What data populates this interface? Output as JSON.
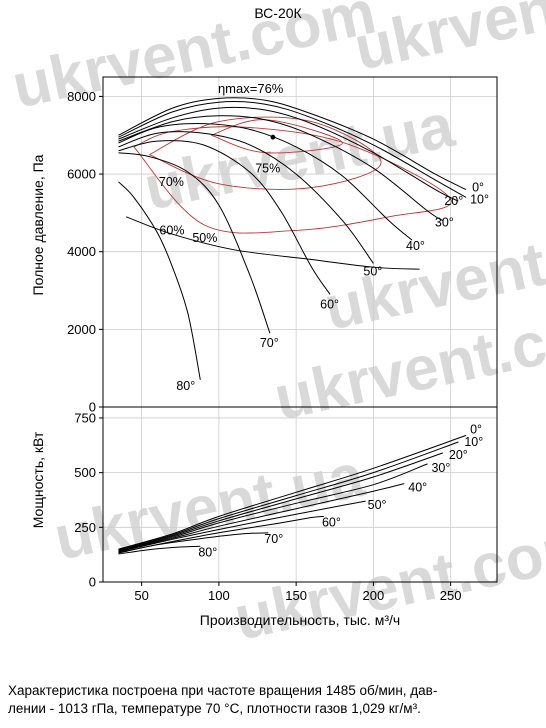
{
  "watermark": {
    "text": "ukrvent.com",
    "text_alt": "ukrvent.ua"
  },
  "footnote": {
    "line1": "Характеристика построена при частоте вращения 1485 об/мин, дав-",
    "line2": "лении - 1013 гПа, температуре 70 °С, плотности газов 1,029 кг/м³."
  },
  "colors": {
    "curves": "#000000",
    "efficiency_ellipses": "#b23a3a",
    "grid": "#cccccc"
  },
  "chart_data": [
    {
      "type": "line",
      "title": "ВС-20К",
      "xlabel": "",
      "ylabel": "Полное давление, Па",
      "xlim": [
        25,
        280
      ],
      "ylim": [
        0,
        8500
      ],
      "xticks": [],
      "yticks": [
        0,
        2000,
        4000,
        6000,
        8000
      ],
      "ytick_labels": [
        "0",
        "2000",
        "4000",
        "6000",
        "8000"
      ],
      "grid": true,
      "eta_max": {
        "label": "ηmax=76%",
        "x": 135,
        "y": 6950
      },
      "series": [
        {
          "name": "0°",
          "x": [
            35,
            70,
            100,
            130,
            160,
            200,
            240,
            260
          ],
          "y": [
            7000,
            7700,
            7950,
            7900,
            7550,
            6900,
            6000,
            5600
          ]
        },
        {
          "name": "10°",
          "x": [
            35,
            70,
            100,
            130,
            160,
            200,
            240,
            260
          ],
          "y": [
            6950,
            7600,
            7850,
            7800,
            7450,
            6750,
            5850,
            5400
          ]
        },
        {
          "name": "20°",
          "x": [
            35,
            70,
            100,
            130,
            160,
            200,
            240,
            255
          ],
          "y": [
            6900,
            7450,
            7700,
            7650,
            7300,
            6550,
            5600,
            5300
          ]
        },
        {
          "name": "30°",
          "x": [
            35,
            70,
            100,
            130,
            160,
            200,
            235,
            245
          ],
          "y": [
            6850,
            7350,
            7500,
            7400,
            7000,
            6150,
            5050,
            4800
          ]
        },
        {
          "name": "40°",
          "x": [
            35,
            60,
            90,
            120,
            150,
            180,
            210,
            225
          ],
          "y": [
            6800,
            7200,
            7300,
            7150,
            6700,
            5950,
            4800,
            4300
          ]
        },
        {
          "name": "50°",
          "x": [
            35,
            60,
            90,
            120,
            150,
            180,
            200
          ],
          "y": [
            6700,
            7050,
            7050,
            6750,
            6000,
            4800,
            3700
          ]
        },
        {
          "name": "60°",
          "x": [
            35,
            60,
            90,
            120,
            140,
            160,
            172
          ],
          "y": [
            6600,
            6850,
            6750,
            6050,
            5050,
            3600,
            2900
          ]
        },
        {
          "name": "70°",
          "x": [
            35,
            55,
            80,
            100,
            120,
            133
          ],
          "y": [
            6550,
            6450,
            6050,
            5200,
            3400,
            1900
          ]
        },
        {
          "name": "80°",
          "x": [
            35,
            45,
            60,
            70,
            80,
            88
          ],
          "y": [
            5800,
            5400,
            4500,
            3600,
            2400,
            700
          ]
        }
      ],
      "efficiency_curves": [
        {
          "label": "50%",
          "x": [
            40,
            70,
            110,
            160,
            200,
            230
          ],
          "y": [
            4900,
            4450,
            4050,
            3800,
            3600,
            3550
          ]
        },
        {
          "label": "60%",
          "x": [
            45,
            90,
            150,
            210,
            250,
            185,
            120,
            70,
            45
          ],
          "y": [
            6700,
            4700,
            4550,
            4900,
            5350,
            6750,
            7200,
            7100,
            6700
          ]
        },
        {
          "label": "70%",
          "x": [
            55,
            100,
            160,
            205,
            160,
            100,
            55
          ],
          "y": [
            6500,
            5750,
            5650,
            6300,
            7350,
            7350,
            6500
          ]
        },
        {
          "label": "75%",
          "x": [
            95,
            130,
            180,
            130,
            95
          ],
          "y": [
            7000,
            6550,
            6800,
            7400,
            7000
          ]
        }
      ]
    },
    {
      "type": "line",
      "title": "",
      "xlabel": "Производительность, тыс. м³/ч",
      "ylabel": "Мощность, кВт",
      "xlim": [
        25,
        280
      ],
      "ylim": [
        0,
        800
      ],
      "xticks": [
        50,
        100,
        150,
        200,
        250
      ],
      "xtick_labels": [
        "50",
        "100",
        "150",
        "200",
        "250"
      ],
      "yticks": [
        0,
        250,
        500,
        750
      ],
      "ytick_labels": [
        "0",
        "250",
        "500",
        "750"
      ],
      "grid": true,
      "series": [
        {
          "name": "0°",
          "x": [
            35,
            70,
            100,
            150,
            200,
            260
          ],
          "y": [
            150,
            220,
            300,
            410,
            520,
            670
          ]
        },
        {
          "name": "10°",
          "x": [
            35,
            70,
            100,
            150,
            200,
            255
          ],
          "y": [
            148,
            215,
            290,
            395,
            500,
            640
          ]
        },
        {
          "name": "20°",
          "x": [
            35,
            70,
            100,
            150,
            200,
            245
          ],
          "y": [
            145,
            210,
            280,
            380,
            480,
            590
          ]
        },
        {
          "name": "30°",
          "x": [
            35,
            70,
            100,
            150,
            200,
            235
          ],
          "y": [
            142,
            205,
            270,
            360,
            445,
            540
          ]
        },
        {
          "name": "40°",
          "x": [
            35,
            70,
            100,
            150,
            200,
            220
          ],
          "y": [
            140,
            200,
            255,
            335,
            415,
            450
          ]
        },
        {
          "name": "50°",
          "x": [
            35,
            70,
            100,
            150,
            180,
            195
          ],
          "y": [
            138,
            195,
            240,
            310,
            350,
            370
          ]
        },
        {
          "name": "60°",
          "x": [
            35,
            70,
            100,
            140,
            160,
            168
          ],
          "y": [
            135,
            185,
            225,
            270,
            295,
            300
          ]
        },
        {
          "name": "70°",
          "x": [
            35,
            60,
            90,
            115,
            132
          ],
          "y": [
            132,
            170,
            200,
            220,
            225
          ]
        },
        {
          "name": "80°",
          "x": [
            35,
            55,
            75,
            88
          ],
          "y": [
            128,
            148,
            160,
            163
          ]
        }
      ]
    }
  ]
}
